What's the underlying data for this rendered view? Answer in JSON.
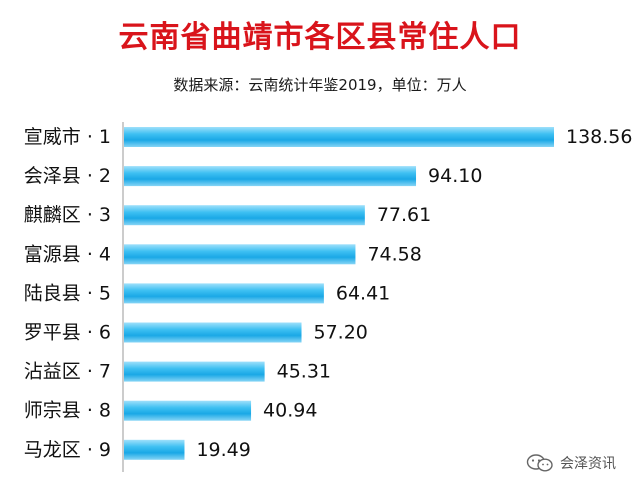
{
  "chart_data": {
    "type": "bar",
    "orientation": "horizontal",
    "title": "云南省曲靖市各区县常住人口",
    "subtitle": "数据来源：云南统计年鉴2019，单位：万人",
    "categories": [
      "宣威市 · 1",
      "会泽县 · 2",
      "麒麟区 · 3",
      "富源县 · 4",
      "陆良县 · 5",
      "罗平县 · 6",
      "沾益区 · 7",
      "师宗县 · 8",
      "马龙区 · 9"
    ],
    "values": [
      138.56,
      94.1,
      77.61,
      74.58,
      64.41,
      57.2,
      45.31,
      40.94,
      19.49
    ],
    "value_labels": [
      "138.56",
      "94.10",
      "77.61",
      "74.58",
      "64.41",
      "57.20",
      "45.31",
      "40.94",
      "19.49"
    ],
    "xlim": [
      0,
      138.56
    ],
    "bar_color": "#29b3ee",
    "grid": false,
    "legend": "none"
  },
  "watermark": {
    "text": "会泽资讯",
    "icon": "wechat-icon"
  }
}
